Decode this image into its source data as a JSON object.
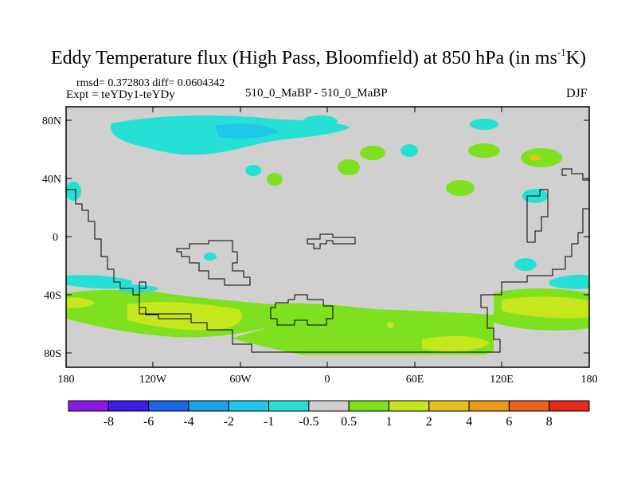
{
  "title": {
    "main": "Eddy Temperature flux (High Pass, Bloomfield) at 850 hPa (in ms",
    "sup": "-1",
    "end": "K)"
  },
  "stats_line": "rmsd= 0.372803 diff= 0.0604342",
  "expt_line": "Expt = teYDy1-teYDy",
  "center_label": "510_0_MaBP - 510_0_MaBP",
  "season": "DJF",
  "axes": {
    "y_ticks": [
      "80N",
      "40N",
      "0",
      "40S",
      "80S"
    ],
    "x_ticks": [
      "180",
      "120W",
      "60W",
      "0",
      "60E",
      "120E",
      "180"
    ]
  },
  "colorbar": {
    "labels": [
      "-8",
      "-6",
      "-4",
      "-2",
      "-1",
      "-0.5",
      "0.5",
      "1",
      "2",
      "4",
      "6",
      "8"
    ],
    "colors": [
      "#8a1be6",
      "#3c1be6",
      "#1e64e6",
      "#1ea0e6",
      "#1ec8e6",
      "#26e0d6",
      "#d0d0d0",
      "#7ee01e",
      "#c6e61e",
      "#e6c01e",
      "#e69a1e",
      "#e6641e",
      "#e6281e"
    ]
  },
  "palette": {
    "land_bg": "#d0d0d0",
    "pos1": "#7ee01e",
    "pos2": "#c6e61e",
    "pos3": "#e6c01e",
    "neg1": "#26e0d6",
    "neg2": "#1ec8e6"
  }
}
